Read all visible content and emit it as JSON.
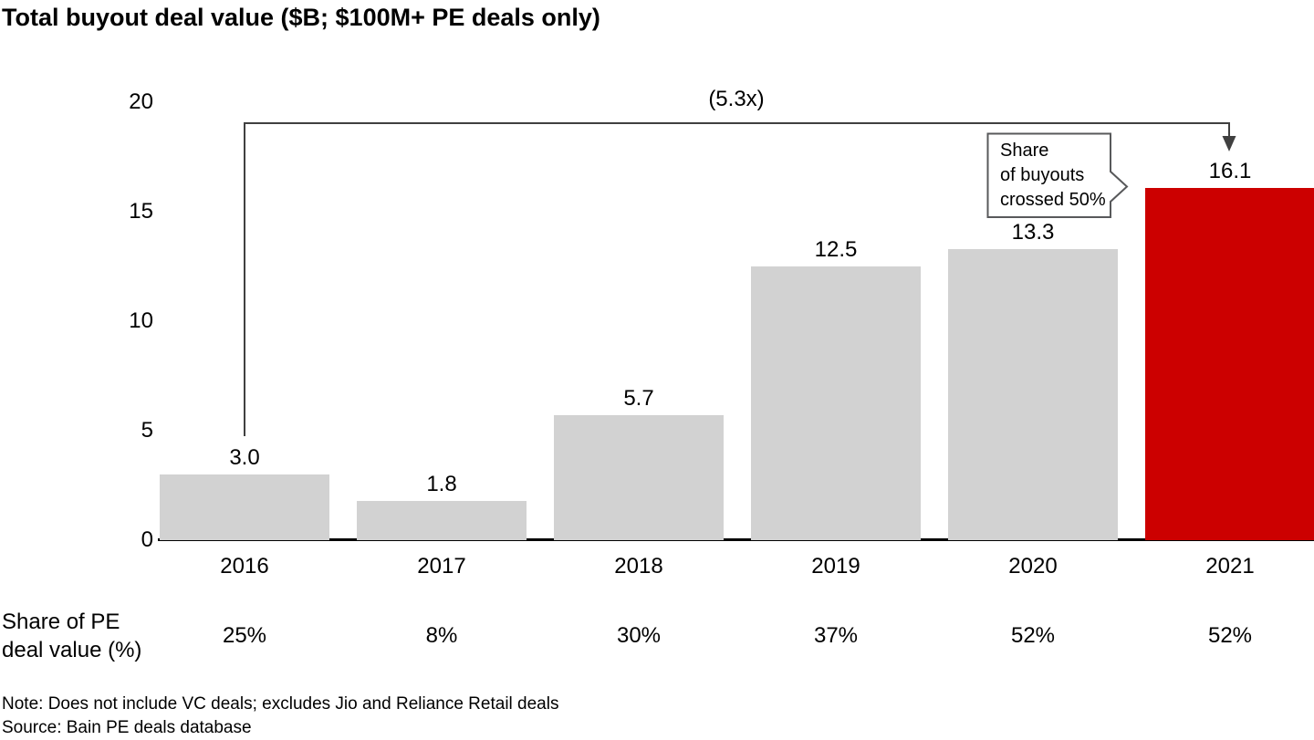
{
  "title": "Total buyout deal value ($B; $100M+ PE deals only)",
  "chart_data": {
    "type": "bar",
    "title": "Total buyout deal value ($B; $100M+ PE deals only)",
    "categories": [
      "2016",
      "2017",
      "2018",
      "2019",
      "2020",
      "2021"
    ],
    "values": [
      3.0,
      1.8,
      5.7,
      12.5,
      13.3,
      16.1
    ],
    "value_labels": [
      "3.0",
      "1.8",
      "5.7",
      "12.5",
      "13.3",
      "16.1"
    ],
    "xlabel": "",
    "ylabel": "",
    "ylim": [
      0,
      20
    ],
    "yticks": [
      "0",
      "5",
      "10",
      "15",
      "20"
    ],
    "grid": false,
    "legend": false,
    "highlight_index": 5,
    "colors": {
      "bar_default": "#D2D2D2",
      "bar_highlight": "#CC0000",
      "axis_line": "#000000",
      "annotation_line": "#404040",
      "callout_border": "#58595B"
    },
    "annotations": {
      "multiplier": "(5.3x)",
      "multiplier_span": "2016 to 2021",
      "callout": {
        "lines": [
          "Share",
          "of buyouts",
          "crossed 50%"
        ]
      }
    },
    "secondary_row": {
      "label_line1": "Share of PE",
      "label_line2": "deal value (%)",
      "values": [
        "25%",
        "8%",
        "30%",
        "37%",
        "52%",
        "52%"
      ]
    }
  },
  "footer": {
    "note": "Note: Does not include VC deals; excludes Jio and Reliance Retail deals",
    "source": "Source: Bain PE deals database"
  }
}
